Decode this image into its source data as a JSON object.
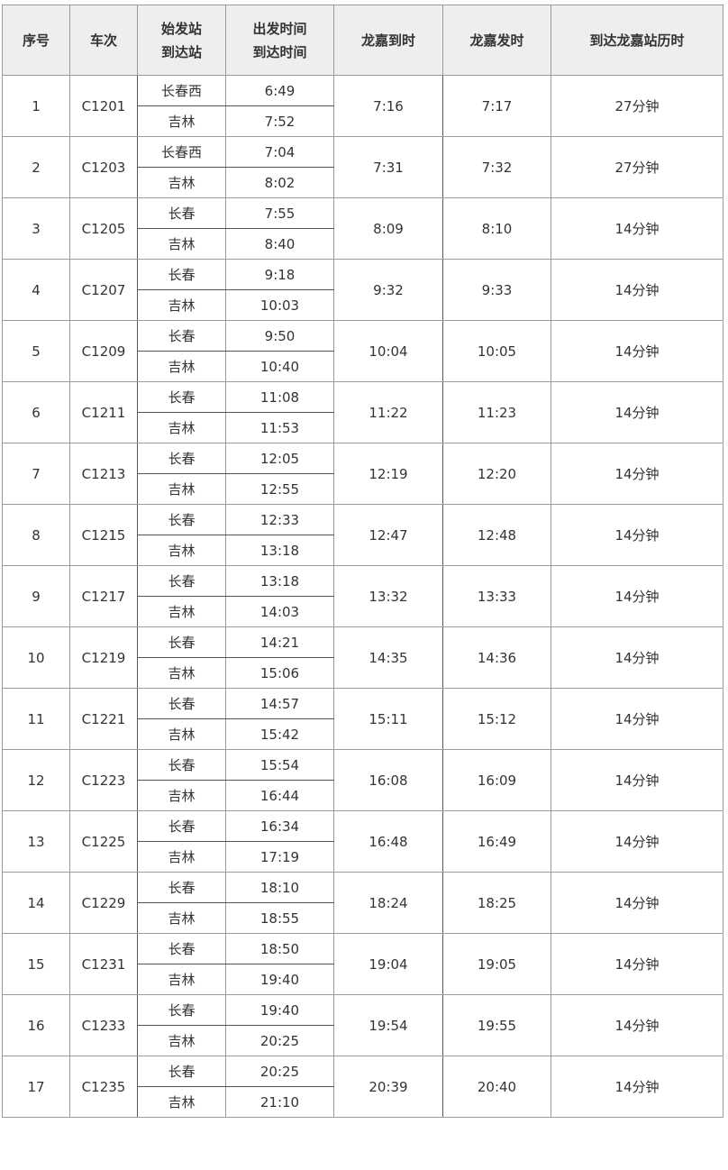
{
  "headers": {
    "seq": "序号",
    "train": "车次",
    "station_top": "始发站",
    "station_bottom": "到达站",
    "time_top": "出发时间",
    "time_bottom": "到达时间",
    "lj_arrive": "龙嘉到时",
    "lj_depart": "龙嘉发时",
    "duration": "到达龙嘉站历时"
  },
  "rows": [
    {
      "seq": "1",
      "train": "C1201",
      "from": "长春西",
      "to": "吉林",
      "dep": "6:49",
      "arr": "7:52",
      "lj_arr": "7:16",
      "lj_dep": "7:17",
      "dur": "27分钟"
    },
    {
      "seq": "2",
      "train": "C1203",
      "from": "长春西",
      "to": "吉林",
      "dep": "7:04",
      "arr": "8:02",
      "lj_arr": "7:31",
      "lj_dep": "7:32",
      "dur": "27分钟"
    },
    {
      "seq": "3",
      "train": "C1205",
      "from": "长春",
      "to": "吉林",
      "dep": "7:55",
      "arr": "8:40",
      "lj_arr": "8:09",
      "lj_dep": "8:10",
      "dur": "14分钟"
    },
    {
      "seq": "4",
      "train": "C1207",
      "from": "长春",
      "to": "吉林",
      "dep": "9:18",
      "arr": "10:03",
      "lj_arr": "9:32",
      "lj_dep": "9:33",
      "dur": "14分钟"
    },
    {
      "seq": "5",
      "train": "C1209",
      "from": "长春",
      "to": "吉林",
      "dep": "9:50",
      "arr": "10:40",
      "lj_arr": "10:04",
      "lj_dep": "10:05",
      "dur": "14分钟"
    },
    {
      "seq": "6",
      "train": "C1211",
      "from": "长春",
      "to": "吉林",
      "dep": "11:08",
      "arr": "11:53",
      "lj_arr": "11:22",
      "lj_dep": "11:23",
      "dur": "14分钟"
    },
    {
      "seq": "7",
      "train": "C1213",
      "from": "长春",
      "to": "吉林",
      "dep": "12:05",
      "arr": "12:55",
      "lj_arr": "12:19",
      "lj_dep": "12:20",
      "dur": "14分钟"
    },
    {
      "seq": "8",
      "train": "C1215",
      "from": "长春",
      "to": "吉林",
      "dep": "12:33",
      "arr": "13:18",
      "lj_arr": "12:47",
      "lj_dep": "12:48",
      "dur": "14分钟"
    },
    {
      "seq": "9",
      "train": "C1217",
      "from": "长春",
      "to": "吉林",
      "dep": "13:18",
      "arr": "14:03",
      "lj_arr": "13:32",
      "lj_dep": "13:33",
      "dur": "14分钟"
    },
    {
      "seq": "10",
      "train": "C1219",
      "from": "长春",
      "to": "吉林",
      "dep": "14:21",
      "arr": "15:06",
      "lj_arr": "14:35",
      "lj_dep": "14:36",
      "dur": "14分钟"
    },
    {
      "seq": "11",
      "train": "C1221",
      "from": "长春",
      "to": "吉林",
      "dep": "14:57",
      "arr": "15:42",
      "lj_arr": "15:11",
      "lj_dep": "15:12",
      "dur": "14分钟"
    },
    {
      "seq": "12",
      "train": "C1223",
      "from": "长春",
      "to": "吉林",
      "dep": "15:54",
      "arr": "16:44",
      "lj_arr": "16:08",
      "lj_dep": "16:09",
      "dur": "14分钟"
    },
    {
      "seq": "13",
      "train": "C1225",
      "from": "长春",
      "to": "吉林",
      "dep": "16:34",
      "arr": "17:19",
      "lj_arr": "16:48",
      "lj_dep": "16:49",
      "dur": "14分钟"
    },
    {
      "seq": "14",
      "train": "C1229",
      "from": "长春",
      "to": "吉林",
      "dep": "18:10",
      "arr": "18:55",
      "lj_arr": "18:24",
      "lj_dep": "18:25",
      "dur": "14分钟"
    },
    {
      "seq": "15",
      "train": "C1231",
      "from": "长春",
      "to": "吉林",
      "dep": "18:50",
      "arr": "19:40",
      "lj_arr": "19:04",
      "lj_dep": "19:05",
      "dur": "14分钟"
    },
    {
      "seq": "16",
      "train": "C1233",
      "from": "长春",
      "to": "吉林",
      "dep": "19:40",
      "arr": "20:25",
      "lj_arr": "19:54",
      "lj_dep": "19:55",
      "dur": "14分钟"
    },
    {
      "seq": "17",
      "train": "C1235",
      "from": "长春",
      "to": "吉林",
      "dep": "20:25",
      "arr": "21:10",
      "lj_arr": "20:39",
      "lj_dep": "20:40",
      "dur": "14分钟"
    }
  ]
}
